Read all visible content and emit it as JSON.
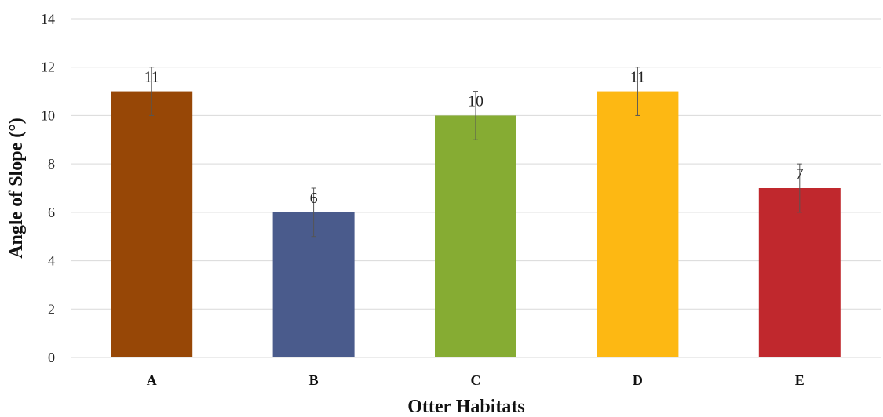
{
  "chart_data": {
    "type": "bar",
    "categories": [
      "A",
      "B",
      "C",
      "D",
      "E"
    ],
    "values": [
      11,
      6,
      10,
      11,
      7
    ],
    "error": [
      1,
      1,
      1,
      1,
      1
    ],
    "data_labels": [
      "11",
      "6",
      "10",
      "11",
      "7"
    ],
    "colors": [
      "#974706",
      "#4A5B8C",
      "#86AC33",
      "#FDB813",
      "#C0282D"
    ],
    "title": "",
    "xlabel": "Otter Habitats",
    "ylabel": "Angle of Slope (°)",
    "ylim": [
      0,
      14
    ],
    "yticks": [
      0,
      2,
      4,
      6,
      8,
      10,
      12,
      14
    ],
    "grid": true,
    "legend": "none"
  }
}
